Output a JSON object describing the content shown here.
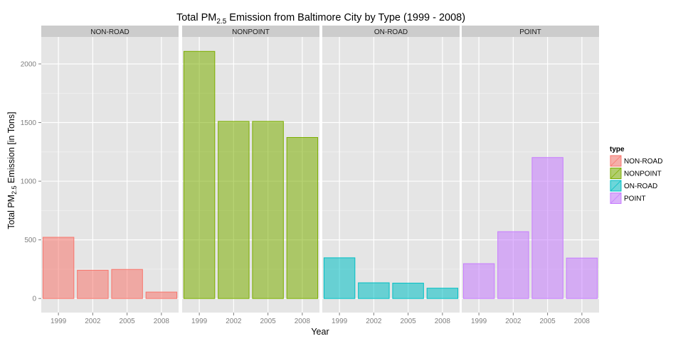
{
  "chart_data": {
    "type": "bar",
    "title": {
      "prefix": "Total PM",
      "sub": "2.5",
      "suffix": " Emission from Baltimore City by Type (1999 - 2008)"
    },
    "xlabel": "Year",
    "ylabel": {
      "prefix": "Total PM",
      "sub": "2.5",
      "suffix": " Emission [in Tons]"
    },
    "categories": [
      "1999",
      "2002",
      "2005",
      "2008"
    ],
    "ylim": [
      -120,
      2230
    ],
    "yticks": [
      0,
      500,
      1000,
      1500,
      2000
    ],
    "grid": true,
    "legend": {
      "title": "type",
      "position": "right"
    },
    "panels": [
      {
        "name": "NON-ROAD",
        "values": [
          522,
          241,
          248,
          55
        ],
        "fill": "#f8766d",
        "stroke": "#f8766d"
      },
      {
        "name": "NONPOINT",
        "values": [
          2107,
          1510,
          1510,
          1373
        ],
        "fill": "#7cae00",
        "stroke": "#7cae00"
      },
      {
        "name": "ON-ROAD",
        "values": [
          347,
          134,
          131,
          88
        ],
        "fill": "#00bfc4",
        "stroke": "#00bfc4"
      },
      {
        "name": "POINT",
        "values": [
          297,
          570,
          1202,
          345
        ],
        "fill": "#c77cff",
        "stroke": "#c77cff"
      }
    ],
    "colors": {
      "panel_bg": "#e5e5e5",
      "strip_bg": "#cccccc",
      "grid_major": "#ffffff",
      "grid_minor": "#f2f2f2",
      "tick_text": "#7f7f7f"
    }
  }
}
